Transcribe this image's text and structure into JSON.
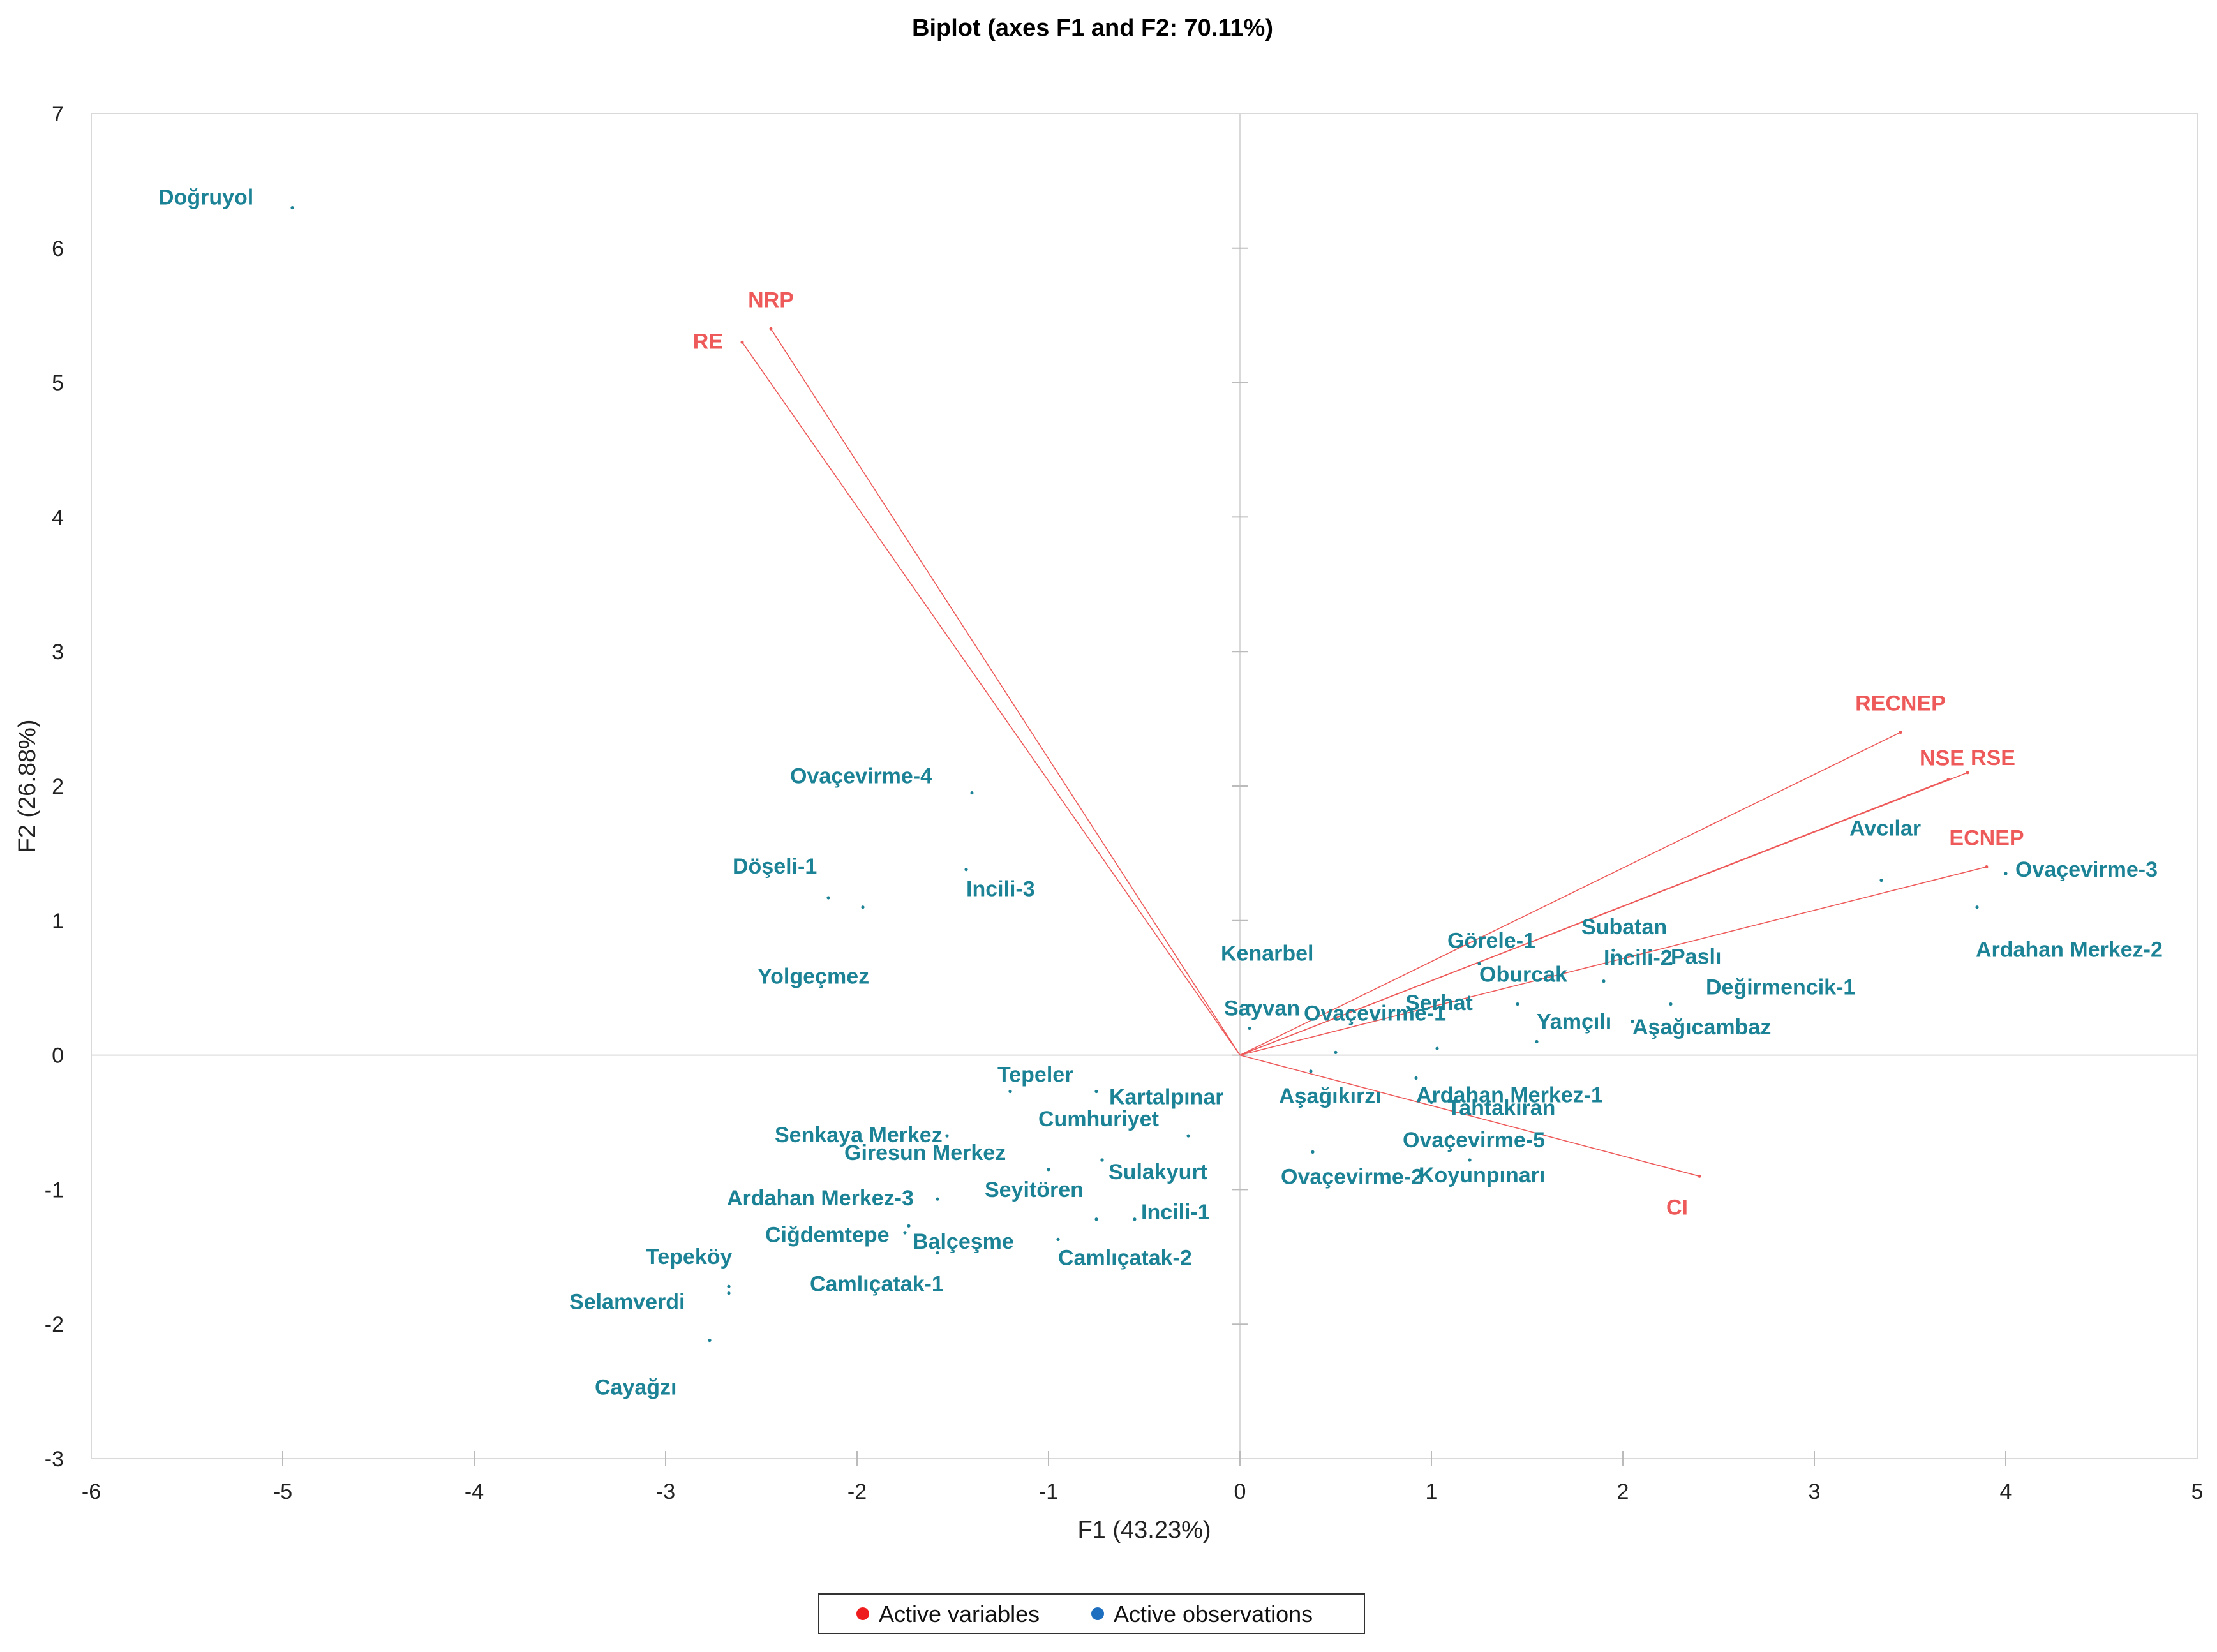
{
  "chart_data": {
    "type": "scatter",
    "title": "Biplot (axes F1 and F2: 70.11%)",
    "xlabel": "F1 (43.23%)",
    "ylabel": "F2 (26.88%)",
    "xlim": [
      -6,
      5
    ],
    "ylim": [
      -3,
      7
    ],
    "xticks": [
      -6,
      -5,
      -4,
      -3,
      -2,
      -1,
      0,
      1,
      2,
      3,
      4,
      5
    ],
    "yticks": [
      -3,
      -2,
      -1,
      0,
      1,
      2,
      3,
      4,
      5,
      6,
      7
    ],
    "colors": {
      "variables": "#ee5a5a",
      "observations": "#1c8396",
      "legend_variables": "#ee1c1c",
      "legend_observations": "#1f6fc0"
    },
    "legend": [
      {
        "label": "Active variables",
        "color_key": "legend_variables"
      },
      {
        "label": "Active observations",
        "color_key": "legend_observations"
      }
    ],
    "variables": [
      {
        "name": "NRP",
        "x": -2.45,
        "y": 5.4,
        "label_pos": "above"
      },
      {
        "name": "RE",
        "x": -2.6,
        "y": 5.3,
        "label_pos": "left"
      },
      {
        "name": "RECNEP",
        "x": 3.45,
        "y": 2.4,
        "label_pos": "above"
      },
      {
        "name": "NSE",
        "x": 3.7,
        "y": 2.05,
        "label_pos": "above-left"
      },
      {
        "name": "RSE",
        "x": 3.8,
        "y": 2.1,
        "label_pos": "right"
      },
      {
        "name": "ECNEP",
        "x": 3.9,
        "y": 1.4,
        "label_pos": "above"
      },
      {
        "name": "CI",
        "x": 2.4,
        "y": -0.9,
        "label_pos": "below"
      }
    ],
    "observations": [
      {
        "name": "Doğruyol",
        "x": -4.95,
        "y": 6.3
      },
      {
        "name": "Ovaçevirme-4",
        "x": -1.4,
        "y": 1.95
      },
      {
        "name": "Döşeli-1",
        "x": -2.15,
        "y": 1.17
      },
      {
        "name": "Incili-3",
        "x": -1.43,
        "y": 1.38
      },
      {
        "name": "Yolgeçmez",
        "x": -1.97,
        "y": 1.1
      },
      {
        "name": "Kenarbel",
        "x": 0.05,
        "y": 0.37
      },
      {
        "name": "Sayvan",
        "x": 0.05,
        "y": 0.2
      },
      {
        "name": "Ovaçevirme-1",
        "x": 0.5,
        "y": 0.02
      },
      {
        "name": "Serhat",
        "x": 1.03,
        "y": 0.05
      },
      {
        "name": "Görele-1",
        "x": 1.25,
        "y": 0.68
      },
      {
        "name": "Oburcak",
        "x": 1.45,
        "y": 0.38
      },
      {
        "name": "Subatan",
        "x": 1.95,
        "y": 0.78
      },
      {
        "name": "Incili-2",
        "x": 1.9,
        "y": 0.55
      },
      {
        "name": "Paslı",
        "x": 2.25,
        "y": 0.68
      },
      {
        "name": "Yamçılı",
        "x": 1.55,
        "y": 0.1
      },
      {
        "name": "Değirmencik-1",
        "x": 2.25,
        "y": 0.38
      },
      {
        "name": "Aşağıcambaz",
        "x": 2.05,
        "y": 0.25
      },
      {
        "name": "Avcılar",
        "x": 3.35,
        "y": 1.3
      },
      {
        "name": "Ovaçevirme-3",
        "x": 4.0,
        "y": 1.35
      },
      {
        "name": "Ardahan Merkez-2",
        "x": 3.85,
        "y": 1.1
      },
      {
        "name": "Ardahan Merkez-1",
        "x": 0.92,
        "y": -0.17
      },
      {
        "name": "Aşağıkırzı",
        "x": 0.37,
        "y": -0.12
      },
      {
        "name": "Tahtakıran",
        "x": 1.0,
        "y": -0.35
      },
      {
        "name": "Ovaçevirme-5",
        "x": 1.1,
        "y": -0.6
      },
      {
        "name": "Koyunpınarı",
        "x": 1.2,
        "y": -0.78
      },
      {
        "name": "Ovaçevirme-2",
        "x": 0.38,
        "y": -0.72
      },
      {
        "name": "Kartalpınar",
        "x": -0.75,
        "y": -0.27
      },
      {
        "name": "Tepeler",
        "x": -1.2,
        "y": -0.27
      },
      {
        "name": "Senkaya Merkez",
        "x": -1.53,
        "y": -0.6
      },
      {
        "name": "Cumhuriyet",
        "x": -0.27,
        "y": -0.6
      },
      {
        "name": "Giresun Merkez",
        "x": -1.0,
        "y": -0.85
      },
      {
        "name": "Sulakyurt",
        "x": -0.72,
        "y": -0.78
      },
      {
        "name": "Ardahan Merkez-3",
        "x": -1.58,
        "y": -1.07
      },
      {
        "name": "Seyitören",
        "x": -0.75,
        "y": -1.22
      },
      {
        "name": "Incili-1",
        "x": -0.55,
        "y": -1.22
      },
      {
        "name": "Ciğdemtepe",
        "x": -1.73,
        "y": -1.27
      },
      {
        "name": "Balçeşme",
        "x": -1.75,
        "y": -1.32
      },
      {
        "name": "Camlıçatak-1",
        "x": -1.58,
        "y": -1.47
      },
      {
        "name": "Camlıçatak-2",
        "x": -0.95,
        "y": -1.37
      },
      {
        "name": "Tepeköy",
        "x": -2.67,
        "y": -1.72
      },
      {
        "name": "Selamverdi",
        "x": -2.67,
        "y": -1.77
      },
      {
        "name": "Cayağzı",
        "x": -2.77,
        "y": -2.12
      }
    ]
  }
}
